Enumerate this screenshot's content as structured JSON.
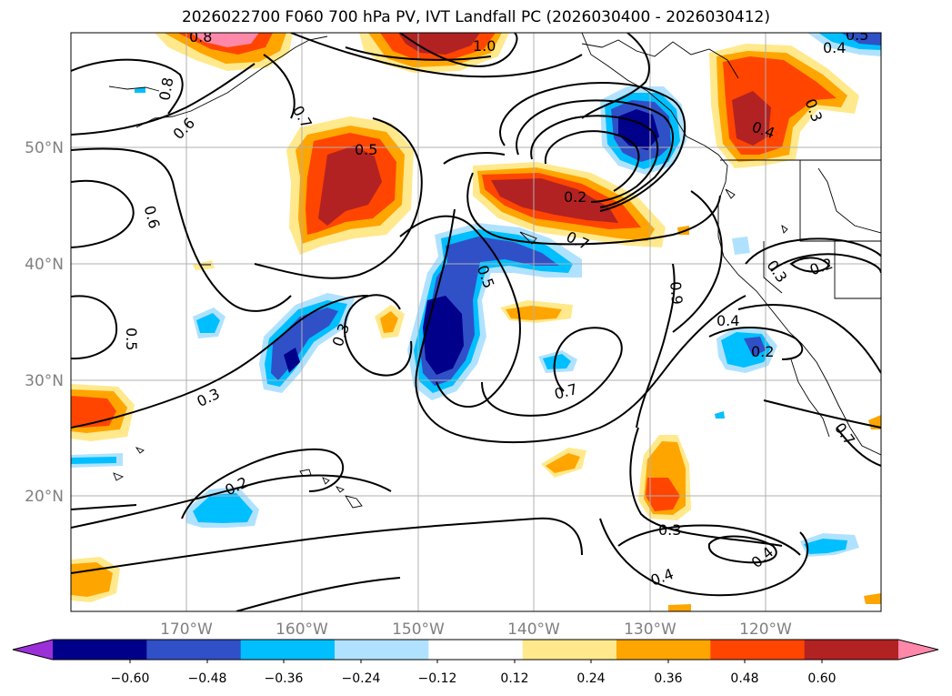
{
  "map": {
    "title": "2026022700 F060 700 hPa PV, IVT Landfall PC (2026030400 - 2026030412)",
    "lat_labels": [
      "50°N",
      "40°N",
      "30°N",
      "20°N"
    ],
    "lon_labels": [
      "170°W",
      "160°W",
      "150°W",
      "140°W",
      "130°W",
      "120°W"
    ],
    "contour_labels": [
      "0.8",
      "1.0",
      "0.8",
      "0.6",
      "0.5",
      "0.6",
      "0.5",
      "0.3",
      "0.3",
      "0.5",
      "0.2",
      "0.7",
      "0.9",
      "0.4",
      "0.2",
      "0.3",
      "0.2",
      "0.7",
      "0.2",
      "0.3",
      "0.4",
      "0.4",
      "0.4",
      "0.3",
      "0.4",
      "0.7",
      "0.5",
      "0.7"
    ]
  },
  "colorbar": {
    "tick_labels": [
      "−0.60",
      "−0.48",
      "−0.36",
      "−0.24",
      "−0.12",
      "0.12",
      "0.24",
      "0.36",
      "0.48",
      "0.60"
    ],
    "colors": [
      "#9b30d9",
      "#00008b",
      "#3050c8",
      "#00bfff",
      "#b0e2ff",
      "#ffffff",
      "#ffe98c",
      "#ffa500",
      "#ff4500",
      "#b22222",
      "#ff88aa"
    ]
  },
  "palette": {
    "neg_light": "#b0e2ff",
    "neg_mid": "#00bfff",
    "neg_dark": "#3050c8",
    "neg_darkest": "#00008b",
    "pos_light": "#ffe98c",
    "pos_mid": "#ffa500",
    "pos_dark": "#ff4500",
    "pos_darkest": "#b22222",
    "pos_extreme": "#ff88aa"
  }
}
